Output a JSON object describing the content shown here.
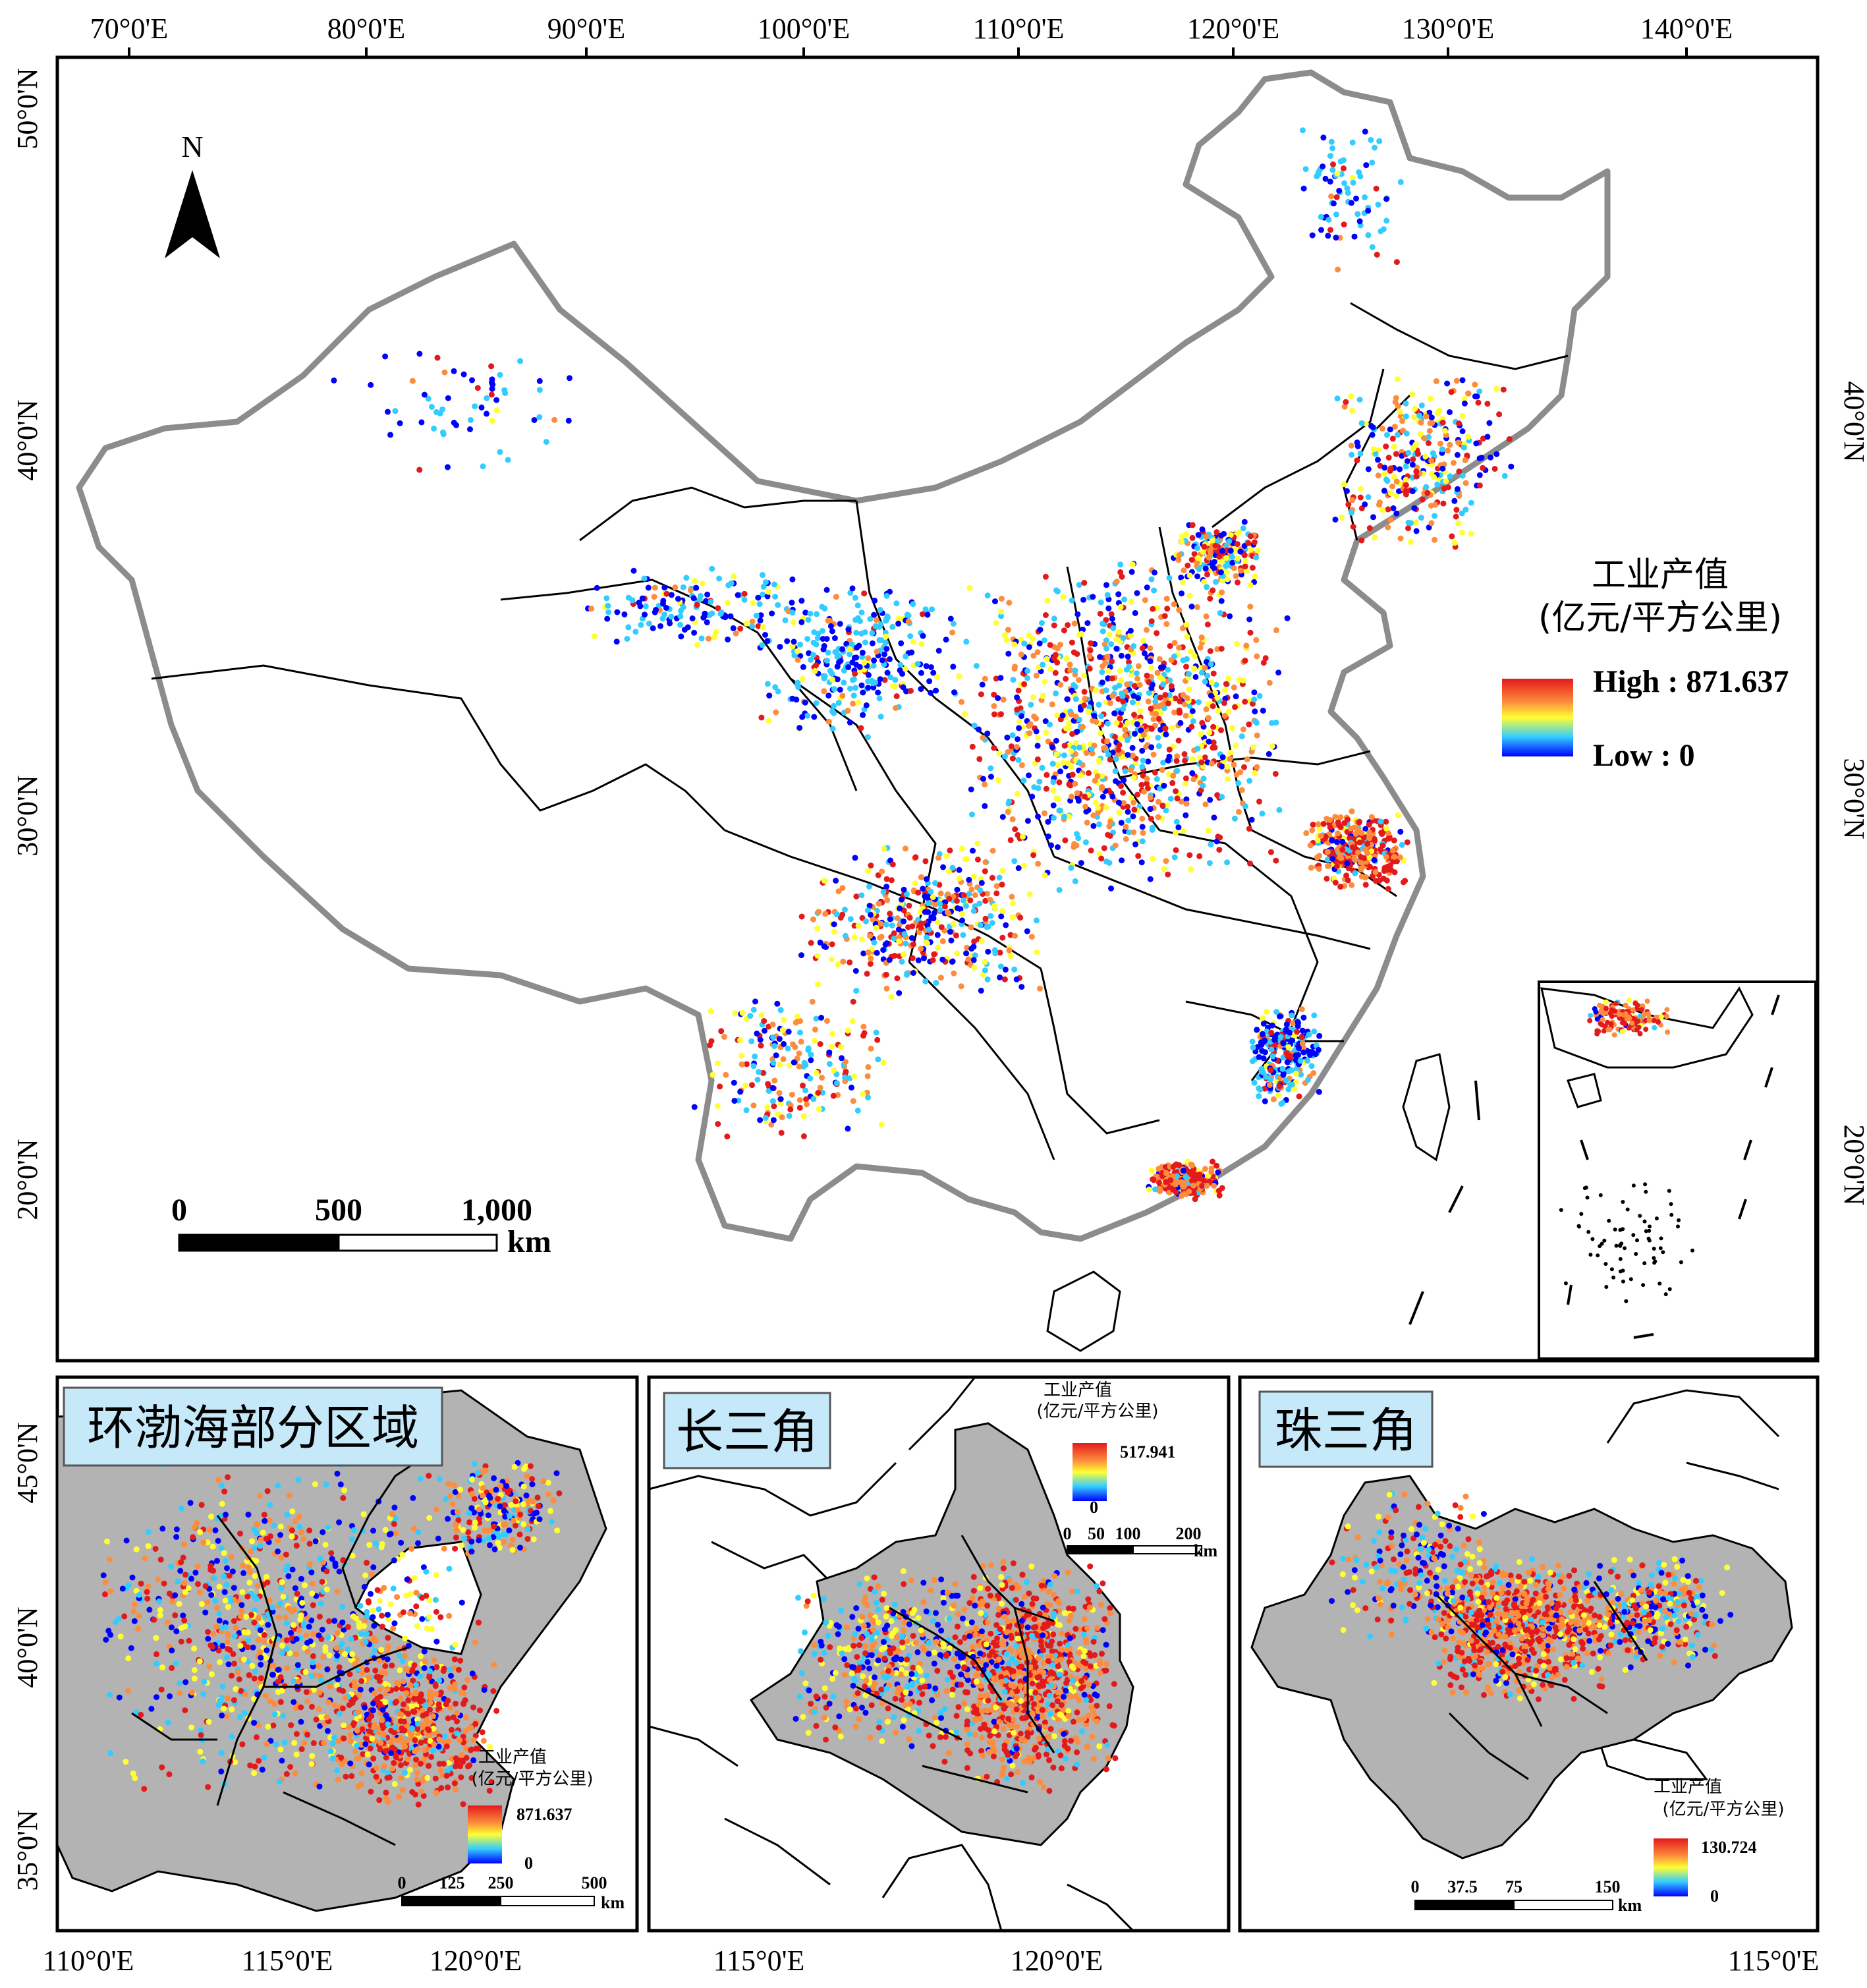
{
  "main_map": {
    "top_ticks": [
      "70°0'E",
      "80°0'E",
      "90°0'E",
      "100°0'E",
      "110°0'E",
      "120°0'E",
      "130°0'E",
      "140°0'E"
    ],
    "left_ticks": [
      "50°0'N",
      "40°0'N",
      "30°0'N",
      "20°0'N"
    ],
    "right_ticks": [
      "40°0'N",
      "30°0'N",
      "20°0'N"
    ],
    "north_label": "N",
    "scale_labels": [
      "0",
      "500",
      "1,000"
    ],
    "scale_unit": "km",
    "legend": {
      "title_line1": "工业产值",
      "title_line2": "(亿元/平方公里)",
      "high": "High : 871.637",
      "low": "Low : 0"
    }
  },
  "panel_bohai": {
    "title": "环渤海部分区域",
    "left_ticks": [
      "45°0'N",
      "40°0'N",
      "35°0'N"
    ],
    "bottom_ticks": [
      "110°0'E",
      "115°0'E",
      "120°0'E"
    ],
    "legend_title_line1": "工业产值",
    "legend_title_line2": "(亿元/平方公里)",
    "legend_max": "871.637",
    "legend_min": "0",
    "scale_labels": [
      "0",
      "125",
      "250",
      "500"
    ],
    "scale_unit": "km"
  },
  "panel_yangtze": {
    "title": "长三角",
    "bottom_ticks": [
      "115°0'E",
      "120°0'E"
    ],
    "legend_title_line1": "工业产值",
    "legend_title_line2": "(亿元/平方公里)",
    "legend_max": "517.941",
    "legend_min": "0",
    "scale_labels": [
      "0",
      "50",
      "100",
      "200"
    ],
    "scale_unit": "km"
  },
  "panel_pearl": {
    "title": "珠三角",
    "bottom_ticks": [
      "115°0'E"
    ],
    "legend_title_line1": "工业产值",
    "legend_title_line2": "(亿元/平方公里)",
    "legend_max": "130.724",
    "legend_min": "0",
    "scale_labels": [
      "0",
      "37.5",
      "75",
      "150"
    ],
    "scale_unit": "km"
  },
  "colors": {
    "high": "#e31a1c",
    "mid_high": "#fd8d3c",
    "mid": "#ffff33",
    "mid_low": "#33ccff",
    "low": "#0000ff",
    "region_grey": "#b3b3b3",
    "border_grey": "#8c8c8c"
  }
}
